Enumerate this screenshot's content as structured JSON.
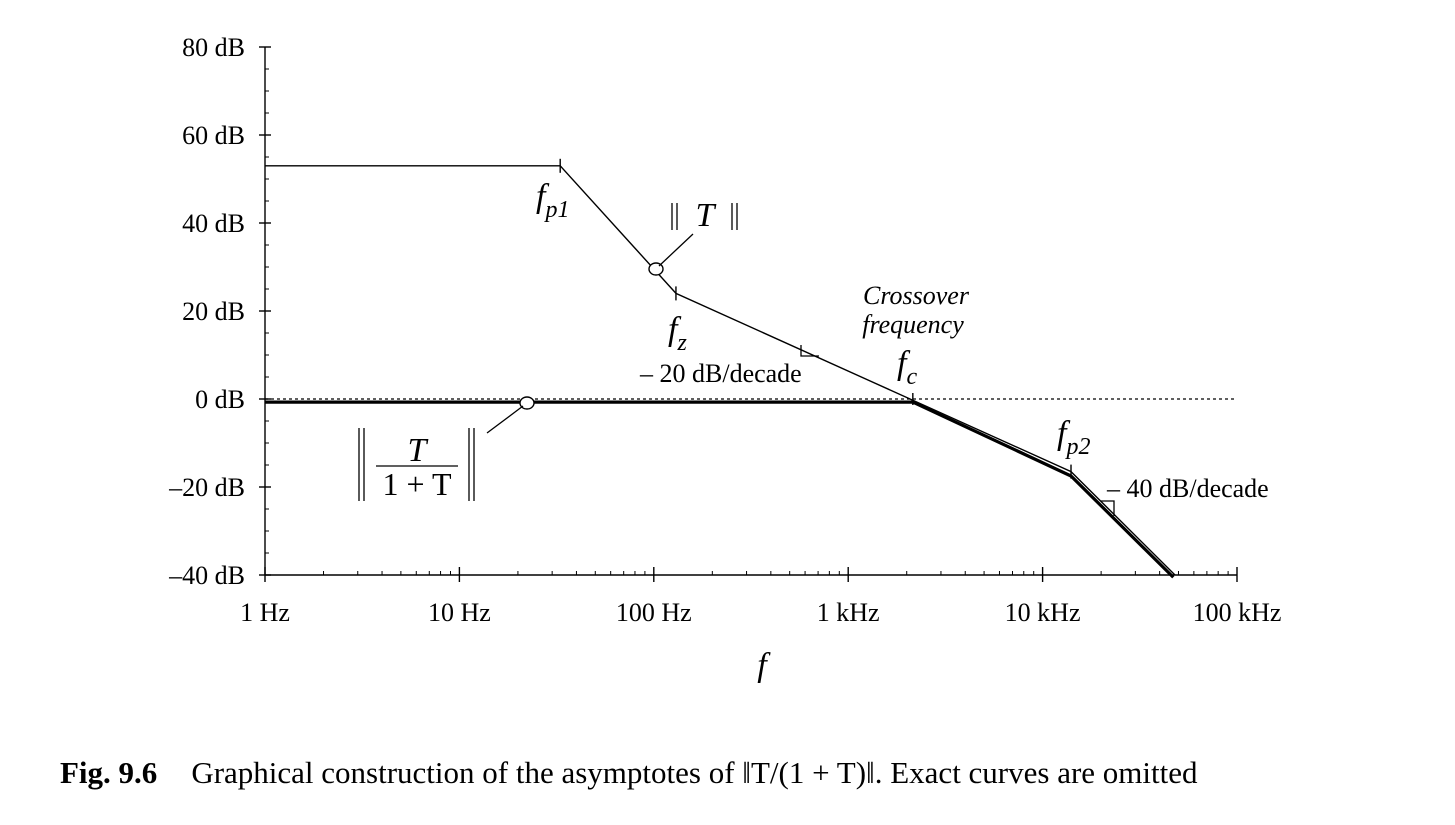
{
  "caption": {
    "label": "Fig. 9.6",
    "text": "Graphical construction of the asymptotes of ‖T/(1 + T)‖. Exact curves are omitted"
  },
  "chart_data": {
    "type": "line",
    "x_scale": "log",
    "xlabel": "f",
    "ylabel": "",
    "xlim_hz": [
      1,
      100000
    ],
    "ylim_db": [
      -40,
      80
    ],
    "x_ticks": [
      {
        "value": 1,
        "label": "1 Hz"
      },
      {
        "value": 10,
        "label": "10 Hz"
      },
      {
        "value": 100,
        "label": "100 Hz"
      },
      {
        "value": 1000,
        "label": "1 kHz"
      },
      {
        "value": 10000,
        "label": "10 kHz"
      },
      {
        "value": 100000,
        "label": "100 kHz"
      }
    ],
    "y_ticks": [
      {
        "value": 80,
        "label": "80 dB"
      },
      {
        "value": 60,
        "label": "60 dB"
      },
      {
        "value": 40,
        "label": "40 dB"
      },
      {
        "value": 20,
        "label": "20 dB"
      },
      {
        "value": 0,
        "label": "0 dB"
      },
      {
        "value": -20,
        "label": "–20 dB"
      },
      {
        "value": -40,
        "label": "–40 dB"
      }
    ],
    "series": [
      {
        "name": "‖T‖",
        "x": [
          1,
          33,
          130,
          14000,
          48000
        ],
        "y": [
          53,
          53,
          24,
          -16.5,
          -40
        ]
      },
      {
        "name": "‖T/(1+T)‖",
        "x": [
          1,
          2150,
          14000,
          47000
        ],
        "y": [
          -0.7,
          -0.7,
          -17.5,
          -40.5
        ]
      }
    ],
    "reference_line": {
      "y": 0,
      "style": "dotted"
    },
    "annotations": {
      "fp1": {
        "main": "f",
        "sub": "p1",
        "x": 33
      },
      "fz": {
        "main": "f",
        "sub": "z",
        "x": 130
      },
      "fc": {
        "main": "f",
        "sub": "c",
        "x": 2150
      },
      "fp2": {
        "main": "f",
        "sub": "p2",
        "x": 14000
      },
      "crossover_line1": "Crossover",
      "crossover_line2": "frequency",
      "slope1": "– 20 dB/decade",
      "slope2": "– 40 dB/decade",
      "T_label": "T",
      "closed_num": "T",
      "closed_den": "1 + T"
    }
  }
}
